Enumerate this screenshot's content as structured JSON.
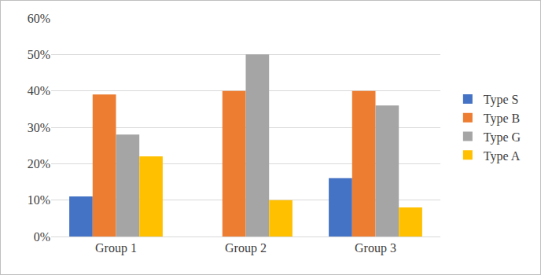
{
  "chart_data": {
    "type": "bar",
    "categories": [
      "Group 1",
      "Group 2",
      "Group 3"
    ],
    "series": [
      {
        "name": "Type S",
        "color": "#4472c4",
        "values": [
          11,
          0,
          16
        ]
      },
      {
        "name": "Type B",
        "color": "#ed7d31",
        "values": [
          39,
          40,
          40
        ]
      },
      {
        "name": "Type G",
        "color": "#a5a5a5",
        "values": [
          28,
          50,
          36
        ]
      },
      {
        "name": "Type A",
        "color": "#ffc000",
        "values": [
          22,
          10,
          8
        ]
      }
    ],
    "ylim": [
      0,
      60
    ],
    "yticks": [
      {
        "value": 0,
        "label": "0%"
      },
      {
        "value": 10,
        "label": "10%"
      },
      {
        "value": 20,
        "label": "20%"
      },
      {
        "value": 30,
        "label": "30%"
      },
      {
        "value": 40,
        "label": "40%"
      },
      {
        "value": 50,
        "label": "50%"
      },
      {
        "value": 60,
        "label": "60%"
      }
    ],
    "grid": true,
    "legend": "right"
  }
}
